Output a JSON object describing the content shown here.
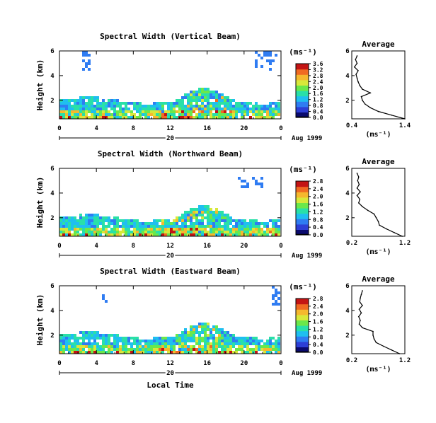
{
  "chart_data": {
    "type": "heatmap",
    "x_label": "Local Time",
    "date_label": "Aug 1999",
    "date_day_label": "20",
    "x_ticks": [
      "0",
      "4",
      "8",
      "12",
      "16",
      "20",
      "0"
    ],
    "y_label": "Height (km)",
    "y_ticks": [
      "2",
      "4",
      "6"
    ],
    "colorbar_unit": "(ms⁻¹)",
    "average_title": "Average",
    "average_xlabel": "(ms⁻¹)",
    "panels": [
      {
        "title": "Spectral Width (Vertical Beam)",
        "colorbar_ticks": [
          "0.0",
          "0.4",
          "0.8",
          "1.2",
          "1.6",
          "2.0",
          "2.4",
          "2.8",
          "3.2",
          "3.6"
        ],
        "colorbar_max": 3.6,
        "average_xlim": [
          0.4,
          1.4
        ],
        "average_xticks": [
          "0.4",
          "1.4"
        ],
        "average_profile": {
          "height_km": [
            0.5,
            0.8,
            1.1,
            1.4,
            1.7,
            2.0,
            2.3,
            2.6,
            2.9,
            3.2,
            3.5,
            3.8,
            4.1,
            4.4,
            4.7,
            5.0,
            5.3,
            5.6
          ],
          "width_ms": [
            1.4,
            1.15,
            0.9,
            0.75,
            0.65,
            0.6,
            0.58,
            0.75,
            0.6,
            0.55,
            0.52,
            0.5,
            0.48,
            0.52,
            0.45,
            0.5,
            0.47,
            0.5
          ]
        }
      },
      {
        "title": "Spectral Width (Northward Beam)",
        "colorbar_ticks": [
          "0.0",
          "0.4",
          "0.8",
          "1.2",
          "1.6",
          "2.0",
          "2.4",
          "2.8"
        ],
        "colorbar_max": 2.8,
        "average_xlim": [
          0.2,
          1.2
        ],
        "average_xticks": [
          "0.2",
          "1.2"
        ],
        "average_profile": {
          "height_km": [
            0.5,
            0.8,
            1.1,
            1.4,
            1.7,
            2.0,
            2.3,
            2.6,
            2.9,
            3.2,
            3.5,
            3.8,
            4.1,
            4.4,
            4.7,
            5.0,
            5.3,
            5.6
          ],
          "width_ms": [
            1.15,
            1.0,
            0.85,
            0.72,
            0.7,
            0.66,
            0.62,
            0.5,
            0.4,
            0.33,
            0.35,
            0.3,
            0.36,
            0.3,
            0.34,
            0.31,
            0.33,
            0.3
          ]
        }
      },
      {
        "title": "Spectral Width (Eastward Beam)",
        "colorbar_ticks": [
          "0.0",
          "0.4",
          "0.8",
          "1.2",
          "1.6",
          "2.0",
          "2.4",
          "2.8"
        ],
        "colorbar_max": 2.8,
        "average_xlim": [
          0.2,
          1.2
        ],
        "average_xticks": [
          "0.2",
          "1.2"
        ],
        "average_profile": {
          "height_km": [
            0.5,
            0.8,
            1.1,
            1.4,
            1.7,
            2.0,
            2.3,
            2.6,
            2.9,
            3.2,
            3.5,
            3.8,
            4.1,
            4.4,
            4.7,
            5.0,
            5.3,
            5.6
          ],
          "width_ms": [
            1.1,
            0.95,
            0.8,
            0.66,
            0.62,
            0.6,
            0.6,
            0.4,
            0.34,
            0.36,
            0.33,
            0.38,
            0.34,
            0.4,
            0.35,
            0.36,
            0.38,
            0.4
          ]
        }
      }
    ]
  }
}
